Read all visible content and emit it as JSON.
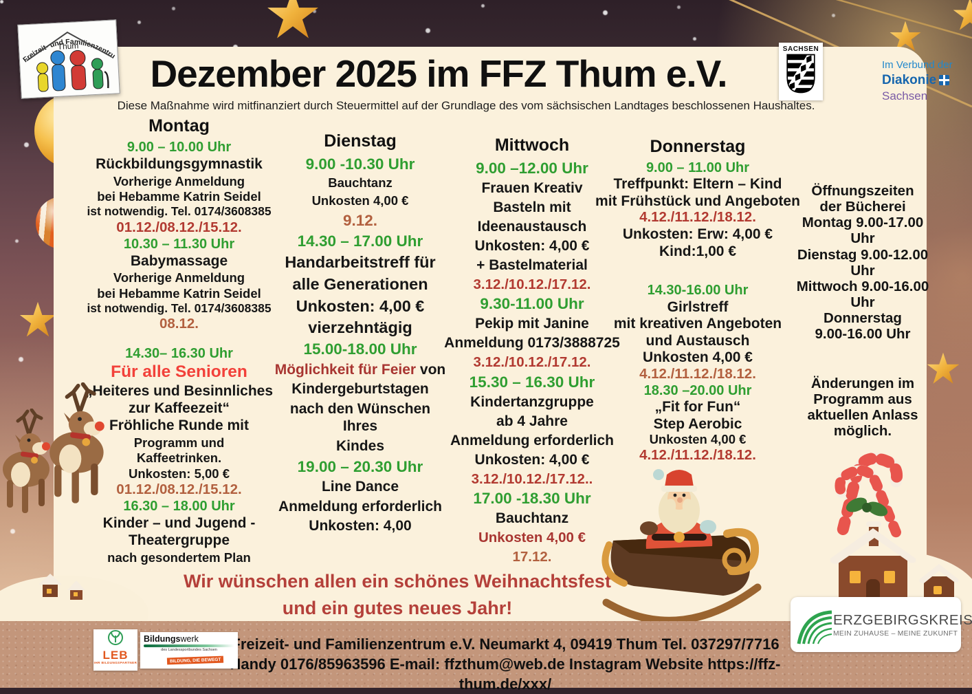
{
  "poster": {
    "title": "Dezember 2025 im FFZ Thum e.V.",
    "subtitle": "Diese Maßnahme wird mitfinanziert durch Steuermittel auf der Grundlage des vom sächsischen Landtages beschlossenen Haushaltes.",
    "closing_line1": "Wir wünschen allen ein schönes Weihnachtsfest",
    "closing_line2": "und ein gutes neues Jahr!"
  },
  "logos": {
    "ffz": {
      "arc_text": "Freizeit- und Familienzentrum e.",
      "town": "Thum"
    },
    "sachsen": {
      "label": "SACHSEN"
    },
    "diakonie": {
      "line1": "Im Verbund der",
      "line2": "Diakonie",
      "line3": "Sachsen"
    },
    "leb": {
      "name": "LEB",
      "tagline": "IHR BILDUNGSPARTNER"
    },
    "bildungswerk": {
      "name_bold": "Bildungs",
      "name_rest": "werk",
      "subline": "des Landessportbundes Sachsen",
      "badge": "BILDUNG, DIE BEWEGT"
    },
    "erzgebirgskreis": {
      "name": "ERZGEBIRGSKREIS",
      "tagline": "MEIN ZUHAUSE – MEINE ZUKUNFT"
    }
  },
  "footer": {
    "line1": "Freizeit- und Familienzentrum e.V. Neumarkt 4, 09419 Thum Tel. 037297/7716",
    "line2": "Handy 0176/85963596 E-mail: ffzthum@web.de Instagram Website https://ffz-thum.de/xxx/"
  },
  "colors": {
    "time_green": "#2f9e31",
    "date_brick_red": "#b23a31",
    "date_sienna": "#b2603f",
    "highlight_red": "#f2413a",
    "dark_red": "#a83531",
    "closing_red": "#b4403a",
    "panel_cream": "#fbf1dc",
    "footer_tan": "#c3967b"
  },
  "decorations": [
    "gold-star-icon",
    "ornament-ball-icon",
    "striped-ornament-icon",
    "red-ornament-icon",
    "garland-lights-icon",
    "reindeer-icon",
    "santa-sleigh-icon",
    "candy-cane-icon",
    "snow-village-icon",
    "snow-hills-icon",
    "sachsen-coat-of-arms-icon",
    "family-figures-icon",
    "diakonie-crest-icon",
    "green-arc-icon",
    "sprout-icon"
  ],
  "columns": [
    {
      "title": "Montag",
      "lines": [
        {
          "t": "9.00 – 10.00 Uhr",
          "s": "time"
        },
        {
          "t": "Rückbildungsgymnastik",
          "s": "event-lg"
        },
        {
          "t": "Vorherige Anmeldung",
          "s": "event"
        },
        {
          "t": "bei Hebamme Katrin Seidel",
          "s": "event"
        },
        {
          "t": "ist notwendig. Tel. 0174/3608385",
          "s": "event-sm"
        },
        {
          "t": "01.12./08.12./15.12.",
          "s": "date"
        },
        {
          "t": "10.30 – 11.30 Uhr",
          "s": "time"
        },
        {
          "t": "Babymassage",
          "s": "event-lg"
        },
        {
          "t": "Vorherige Anmeldung",
          "s": "event"
        },
        {
          "t": "bei Hebamme Katrin Seidel",
          "s": "event"
        },
        {
          "t": "ist notwendig. Tel. 0174/3608385",
          "s": "event-sm"
        },
        {
          "t": "08.12.",
          "s": "date2"
        },
        {
          "s": "gap"
        },
        {
          "t": "14.30– 16.30 Uhr",
          "s": "time"
        },
        {
          "t": "Für alle Senioren",
          "s": "red"
        },
        {
          "t": "„Heiteres und Besinnliches",
          "s": "event-lg"
        },
        {
          "t": "zur Kaffeezeit“",
          "s": "event-lg"
        },
        {
          "t": "Fröhliche Runde mit",
          "s": "event-lg"
        },
        {
          "t": "Programm und",
          "s": "event"
        },
        {
          "t": "Kaffeetrinken.",
          "s": "event"
        },
        {
          "t": "Unkosten: 5,00 €",
          "s": "event"
        },
        {
          "t": "01.12./08.12./15.12.",
          "s": "date2"
        },
        {
          "t": "16.30 – 18.00 Uhr",
          "s": "time"
        },
        {
          "t": "Kinder – und Jugend -",
          "s": "event-lg"
        },
        {
          "t": "Theatergruppe",
          "s": "event-lg"
        },
        {
          "t": "nach gesondertem Plan",
          "s": "event"
        }
      ]
    },
    {
      "title": "Dienstag",
      "lines": [
        {
          "t": "9.00 -10.30 Uhr",
          "s": "time-lg"
        },
        {
          "t": "Bauchtanz",
          "s": "event"
        },
        {
          "t": "Unkosten 4,00 €",
          "s": "event"
        },
        {
          "t": "9.12.",
          "s": "date2-lg"
        },
        {
          "t": "14.30 – 17.00 Uhr",
          "s": "time-lg"
        },
        {
          "t": "Handarbeitstreff für",
          "s": "event-xl"
        },
        {
          "t": "alle Generationen",
          "s": "event-xl"
        },
        {
          "t": "Unkosten: 4,00 €",
          "s": "event-xl"
        },
        {
          "t": "vierzehntägig",
          "s": "event-xl"
        },
        {
          "t": "15.00-18.00 Uhr",
          "s": "time-lg"
        },
        {
          "parts": [
            {
              "t": "Möglichkeit für Feier",
              "s": "seg-darkred"
            },
            {
              "t": " von",
              "s": "seg-plain"
            }
          ],
          "s": "event-lg"
        },
        {
          "t": "Kindergeburtstagen",
          "s": "event-lg"
        },
        {
          "t": "nach den Wünschen Ihres",
          "s": "event-lg"
        },
        {
          "t": "Kindes",
          "s": "event-lg"
        },
        {
          "t": "19.00 – 20.30 Uhr",
          "s": "time-lg"
        },
        {
          "t": "Line Dance",
          "s": "event-lg"
        },
        {
          "t": "Anmeldung erforderlich",
          "s": "event-lg"
        },
        {
          "t": "Unkosten: 4,00",
          "s": "event-lg"
        }
      ]
    },
    {
      "title": "Mittwoch",
      "lines": [
        {
          "t": "9.00 –12.00 Uhr",
          "s": "time-lg"
        },
        {
          "t": "Frauen Kreativ",
          "s": "event-lg"
        },
        {
          "t": "Basteln mit",
          "s": "event-lg"
        },
        {
          "t": "Ideenaustausch",
          "s": "event-lg"
        },
        {
          "t": "Unkosten: 4,00 €",
          "s": "event-lg"
        },
        {
          "t": "+ Bastelmaterial",
          "s": "event-lg"
        },
        {
          "t": "3.12./10.12./17.12.",
          "s": "date"
        },
        {
          "t": "9.30-11.00 Uhr",
          "s": "time-lg"
        },
        {
          "t": "Pekip mit Janine",
          "s": "event-lg"
        },
        {
          "t": "Anmeldung 0173/3888725",
          "s": "event-lg"
        },
        {
          "t": "3.12./10.12./17.12.",
          "s": "date"
        },
        {
          "t": "15.30 – 16.30 Uhr",
          "s": "time-lg"
        },
        {
          "t": "Kindertanzgruppe",
          "s": "event-lg"
        },
        {
          "t": "ab 4 Jahre",
          "s": "event-lg"
        },
        {
          "t": "Anmeldung erforderlich",
          "s": "event-lg"
        },
        {
          "t": "Unkosten: 4,00 €",
          "s": "event-lg"
        },
        {
          "t": "3.12./10.12./17.12..",
          "s": "date"
        },
        {
          "t": "17.00 -18.30 Uhr",
          "s": "time-lg"
        },
        {
          "t": "Bauchtanz",
          "s": "event-lg"
        },
        {
          "t": "Unkosten 4,00 €",
          "s": "darkred"
        },
        {
          "t": "17.12.",
          "s": "date2"
        }
      ]
    },
    {
      "title": "Donnerstag",
      "lines": [
        {
          "t": "9.00 – 11.00 Uhr",
          "s": "time"
        },
        {
          "t": "Treffpunkt: Eltern – Kind",
          "s": "event-lg"
        },
        {
          "t": "mit Frühstück und Angeboten",
          "s": "event-lg"
        },
        {
          "t": "4.12./11.12./18.12.",
          "s": "date"
        },
        {
          "t": "Unkosten: Erw: 4,00 €",
          "s": "event-lg"
        },
        {
          "t": "Kind:1,00 €",
          "s": "event-lg"
        },
        {
          "s": "gap-md"
        },
        {
          "t": "14.30-16.00 Uhr",
          "s": "time"
        },
        {
          "t": "Girlstreff",
          "s": "event-lg"
        },
        {
          "t": "mit kreativen Angeboten",
          "s": "event-lg"
        },
        {
          "t": "und Austausch",
          "s": "event-lg"
        },
        {
          "t": "Unkosten 4,00 €",
          "s": "event-lg"
        },
        {
          "t": "4.12./11.12./18.12.",
          "s": "date2"
        },
        {
          "t": "18.30 –20.00 Uhr",
          "s": "time"
        },
        {
          "t": "„Fit for Fun“",
          "s": "event-lg"
        },
        {
          "t": "Step Aerobic",
          "s": "event-lg"
        },
        {
          "t": "Unkosten 4,00 €",
          "s": "event"
        },
        {
          "t": "4.12./11.12./18.12.",
          "s": "date"
        }
      ]
    },
    {
      "title": "",
      "lines": [
        {
          "t": "Öffnungszeiten",
          "s": "info"
        },
        {
          "t": "der Bücherei",
          "s": "info"
        },
        {
          "t": "Montag 9.00-17.00",
          "s": "info"
        },
        {
          "t": "Uhr",
          "s": "info"
        },
        {
          "t": "Dienstag 9.00-12.00",
          "s": "info"
        },
        {
          "t": "Uhr",
          "s": "info"
        },
        {
          "t": "Mittwoch 9.00-16.00",
          "s": "info"
        },
        {
          "t": "Uhr",
          "s": "info"
        },
        {
          "t": "Donnerstag",
          "s": "info"
        },
        {
          "t": "9.00-16.00 Uhr",
          "s": "info"
        },
        {
          "s": "gap-lg"
        },
        {
          "t": "Änderungen im",
          "s": "info"
        },
        {
          "t": "Programm aus",
          "s": "info"
        },
        {
          "t": "aktuellen Anlass",
          "s": "info"
        },
        {
          "t": "möglich.",
          "s": "info"
        }
      ]
    }
  ]
}
